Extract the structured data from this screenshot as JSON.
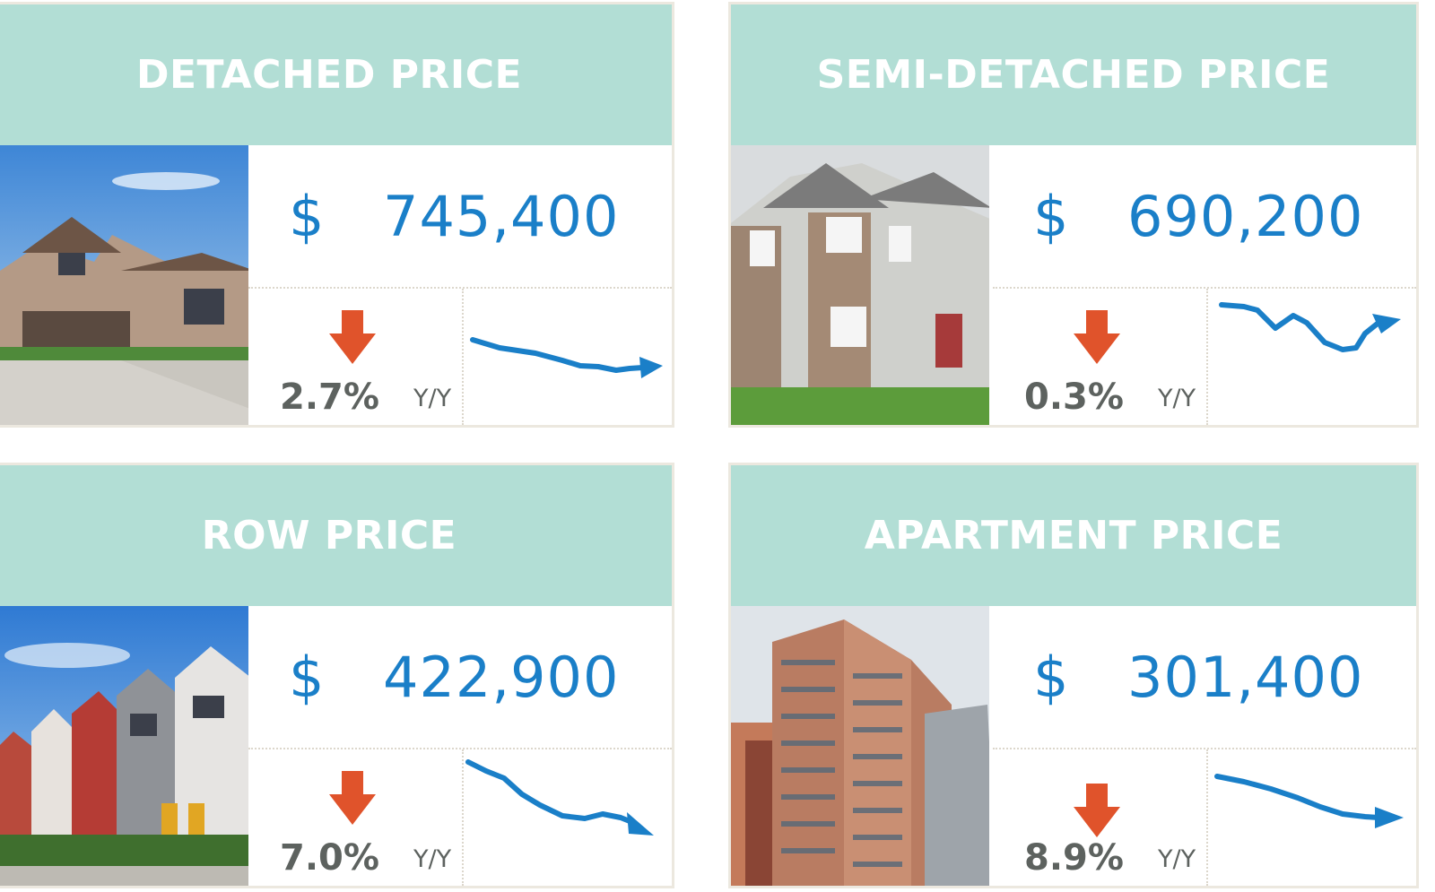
{
  "cards": [
    {
      "title": "DETACHED PRICE",
      "photo": "detached-house-photo",
      "currency": "$",
      "price": "745,400",
      "trend": "down",
      "change": "2.7%",
      "change_unit": "Y/Y"
    },
    {
      "title": "SEMI-DETACHED PRICE",
      "photo": "semi-detached-house-photo",
      "currency": "$",
      "price": "690,200",
      "trend": "down",
      "change": "0.3%",
      "change_unit": "Y/Y"
    },
    {
      "title": "ROW PRICE",
      "photo": "row-houses-photo",
      "currency": "$",
      "price": "422,900",
      "trend": "down",
      "change": "7.0%",
      "change_unit": "Y/Y"
    },
    {
      "title": "APARTMENT PRICE",
      "photo": "apartment-building-photo",
      "currency": "$",
      "price": "301,400",
      "trend": "down",
      "change": "8.9%",
      "change_unit": "Y/Y"
    }
  ],
  "colors": {
    "header_bg": "#b2ded5",
    "price_text": "#1a7fc8",
    "down_arrow": "#e0532b",
    "percent_text": "#5d625f",
    "sparkline": "#1a7fc8"
  }
}
